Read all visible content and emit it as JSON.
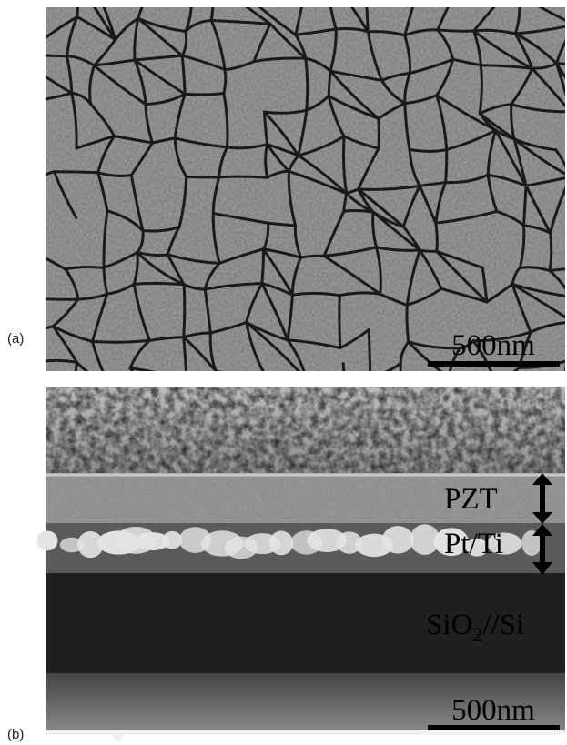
{
  "panels": [
    {
      "label": "(a)",
      "scale_bar": "500nm"
    },
    {
      "label": "(b)",
      "scale_bar": "500nm",
      "layers": [
        {
          "name": "PZT"
        },
        {
          "name": "Pt/Ti"
        },
        {
          "name_parts": [
            "SiO",
            "2",
            "//Si"
          ]
        }
      ]
    }
  ]
}
